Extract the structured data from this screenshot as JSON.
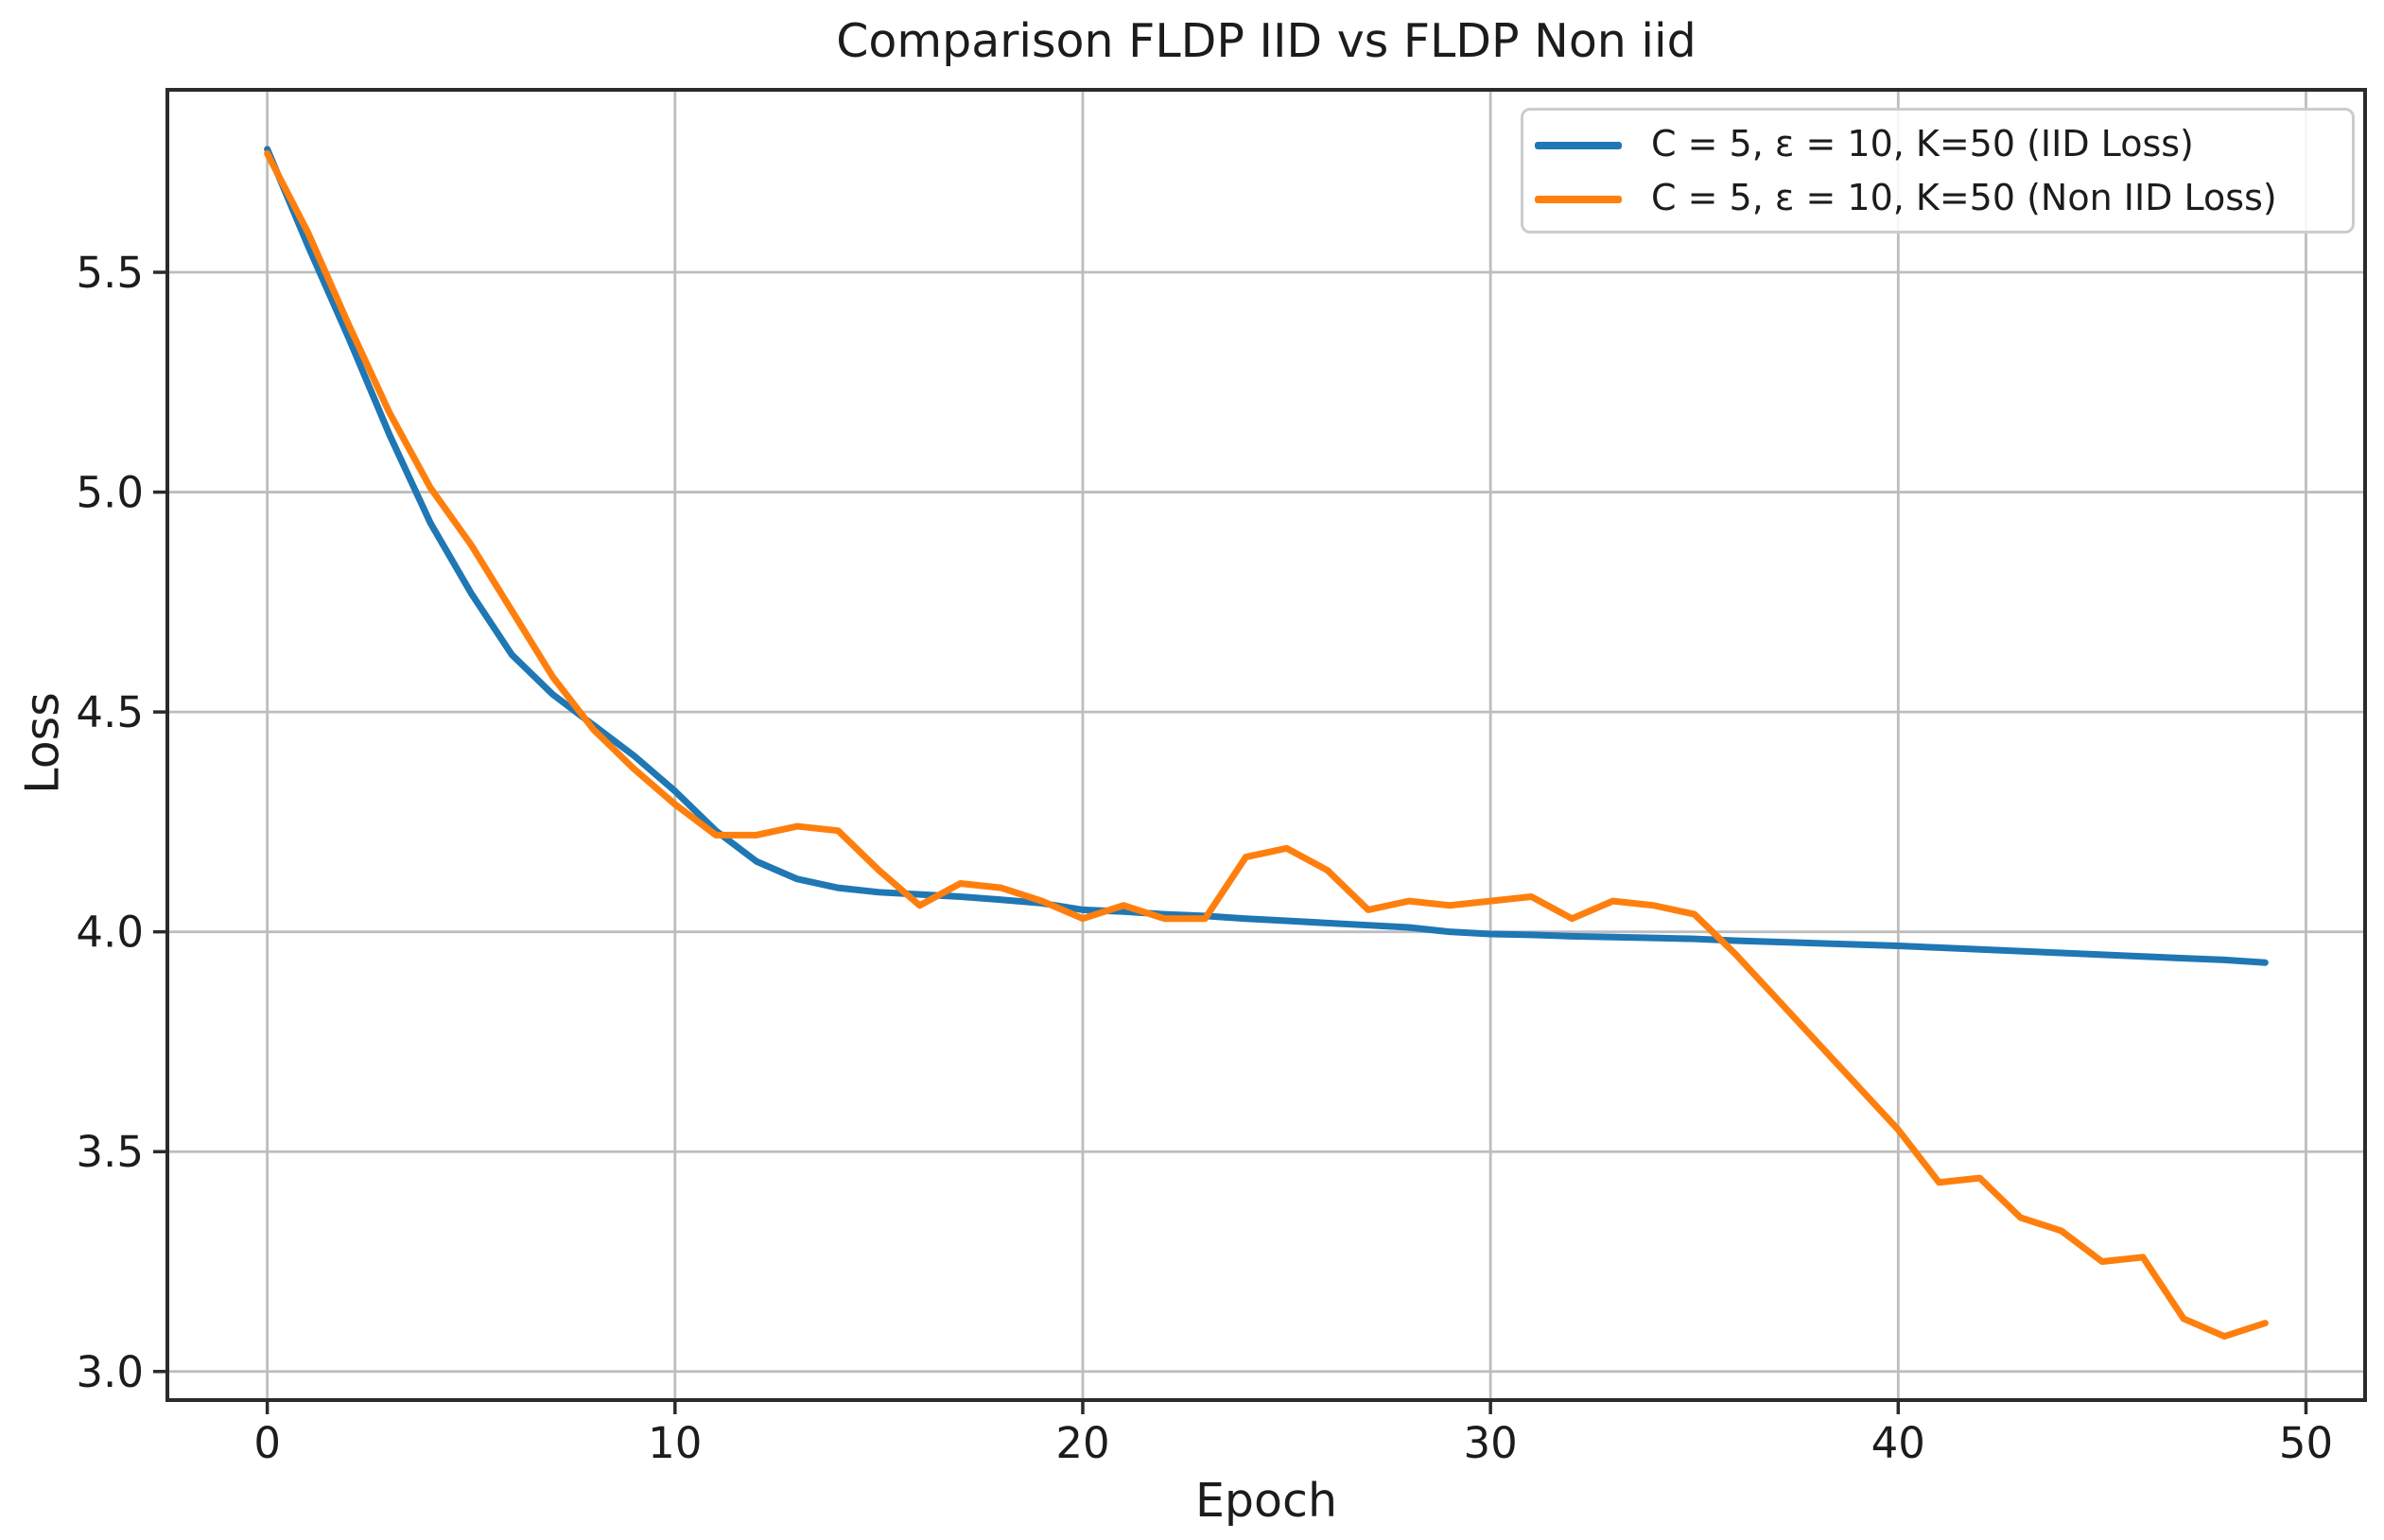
{
  "figure": {
    "title": "Comparison FLDP IID vs FLDP Non iid",
    "xlabel": "Epoch",
    "ylabel": "Loss"
  },
  "colors": {
    "iid_line": "#1f77b4",
    "non_iid_line": "#ff7f0e",
    "grid": "#bdbdbd",
    "spine": "#2b2b2b",
    "text": "#1c1c1c",
    "legend_border": "#cccccc"
  },
  "chart_data": {
    "type": "line",
    "title": "Comparison FLDP IID vs FLDP Non iid",
    "xlabel": "Epoch",
    "ylabel": "Loss",
    "grid": true,
    "legend_position": "upper right",
    "xlim": [
      -2.45,
      51.45
    ],
    "ylim": [
      2.935,
      5.915
    ],
    "xticks": [
      0,
      10,
      20,
      30,
      40,
      50
    ],
    "yticks": [
      3.0,
      3.5,
      4.0,
      4.5,
      5.0,
      5.5
    ],
    "xtick_labels": [
      "0",
      "10",
      "20",
      "30",
      "40",
      "50"
    ],
    "ytick_labels": [
      "3.0",
      "3.5",
      "4.0",
      "4.5",
      "5.0",
      "5.5"
    ],
    "x": [
      0,
      1,
      2,
      3,
      4,
      5,
      6,
      7,
      8,
      9,
      10,
      11,
      12,
      13,
      14,
      15,
      16,
      17,
      18,
      19,
      20,
      21,
      22,
      23,
      24,
      25,
      26,
      27,
      28,
      29,
      30,
      31,
      32,
      33,
      34,
      35,
      36,
      37,
      38,
      39,
      40,
      41,
      42,
      43,
      44,
      45,
      46,
      47,
      48,
      49
    ],
    "series": [
      {
        "name": "C = 5, ε = 10, K=50 (IID Loss)",
        "color": "#1f77b4",
        "values": [
          5.78,
          5.56,
          5.35,
          5.13,
          4.93,
          4.77,
          4.63,
          4.54,
          4.47,
          4.4,
          4.32,
          4.23,
          4.16,
          4.12,
          4.1,
          4.09,
          4.085,
          4.08,
          4.073,
          4.065,
          4.05,
          4.046,
          4.04,
          4.036,
          4.03,
          4.025,
          4.02,
          4.015,
          4.01,
          4.0,
          3.995,
          3.993,
          3.99,
          3.988,
          3.986,
          3.984,
          3.98,
          3.977,
          3.974,
          3.971,
          3.968,
          3.964,
          3.96,
          3.956,
          3.952,
          3.948,
          3.944,
          3.94,
          3.936,
          3.93
        ]
      },
      {
        "name": "C = 5, ε = 10, K=50 (Non IID Loss)",
        "color": "#ff7f0e",
        "values": [
          5.77,
          5.59,
          5.38,
          5.18,
          5.01,
          4.88,
          4.73,
          4.58,
          4.46,
          4.37,
          4.29,
          4.22,
          4.22,
          4.24,
          4.23,
          4.14,
          4.06,
          4.11,
          4.1,
          4.07,
          4.03,
          4.06,
          4.03,
          4.03,
          4.17,
          4.19,
          4.14,
          4.05,
          4.07,
          4.06,
          4.07,
          4.08,
          4.03,
          4.07,
          4.06,
          4.04,
          3.95,
          3.85,
          3.75,
          3.65,
          3.55,
          3.43,
          3.44,
          3.35,
          3.32,
          3.25,
          3.26,
          3.12,
          3.08,
          3.11
        ]
      }
    ]
  }
}
